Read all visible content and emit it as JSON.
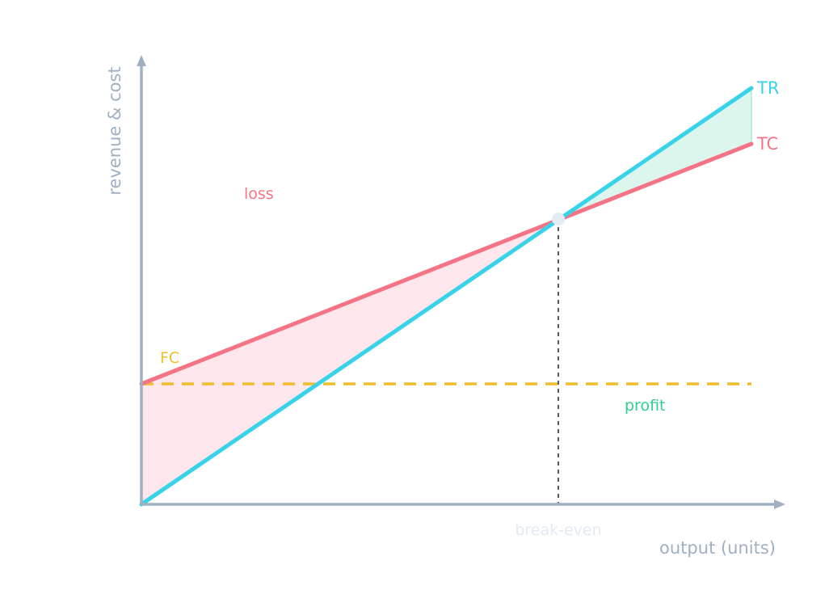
{
  "axes": {
    "x_label": "output (units)",
    "y_label": "revenue & cost"
  },
  "curves": {
    "tr": {
      "label": "TR"
    },
    "tc": {
      "label": "TC"
    },
    "fc": {
      "label": "FC"
    }
  },
  "regions": {
    "loss": {
      "label": "loss"
    },
    "profit": {
      "label": "profit"
    }
  },
  "break_even": {
    "label": "break-even"
  },
  "colors": {
    "axis": "#9fb0c2",
    "tr": "#38d3e8",
    "tc": "#f47486",
    "fc": "#f0bd2c",
    "loss_fill": "#fde7ec",
    "profit_fill": "#dcf6ee",
    "profit_text": "#2ecf8f",
    "break_even_text": "#e2eaf3",
    "guide": "#3b4a5a",
    "point": "#e3ebf4"
  }
}
